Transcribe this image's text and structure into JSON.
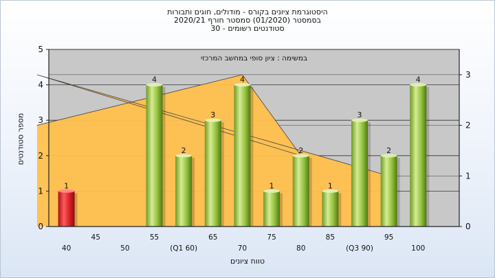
{
  "title_lines": [
    "היסטוגרמת ציונים בקורס - מודולים, חוגים ותבורות",
    "בסמסטר  (01/2020)  סמסטר חורף  2020/21",
    "סטודנטים רשומים - 30"
  ],
  "chart_data": {
    "type": "bar",
    "categories": [
      "40",
      "45",
      "50",
      "55",
      "(Q1 60)",
      "65",
      "70",
      "75",
      "80",
      "85",
      "(Q3 90)",
      "95",
      "100"
    ],
    "values": [
      1,
      0,
      0,
      4,
      2,
      3,
      4,
      1,
      2,
      1,
      3,
      2,
      4
    ],
    "data_labels": [
      "1",
      "",
      "",
      "4",
      "2",
      "3",
      "4",
      "1",
      "2",
      "1",
      "3",
      "2",
      "4"
    ],
    "highlight_category": "40",
    "xlabel": "טווח ציונים",
    "ylabel": "מספר סטודנטים",
    "ylim": [
      0,
      5
    ],
    "yticks": [
      0,
      1,
      2,
      3,
      4,
      5
    ],
    "y2lim": [
      0,
      3.5
    ],
    "y2ticks": [
      0,
      1,
      2,
      3
    ],
    "band_label": "במשימה : ציון סופי במחשב המרכזי",
    "orange_area": {
      "x": [
        "60",
        "70",
        "80",
        "90",
        "95"
      ],
      "values": [
        2.0,
        3.0,
        1.4,
        3.0,
        1.0
      ]
    },
    "grid": true,
    "colors": {
      "bar_green": "#8fbf3a",
      "bar_red": "#d61f26",
      "area_orange": "#ffc04d",
      "plot_bg": "#c8c8c8"
    }
  }
}
